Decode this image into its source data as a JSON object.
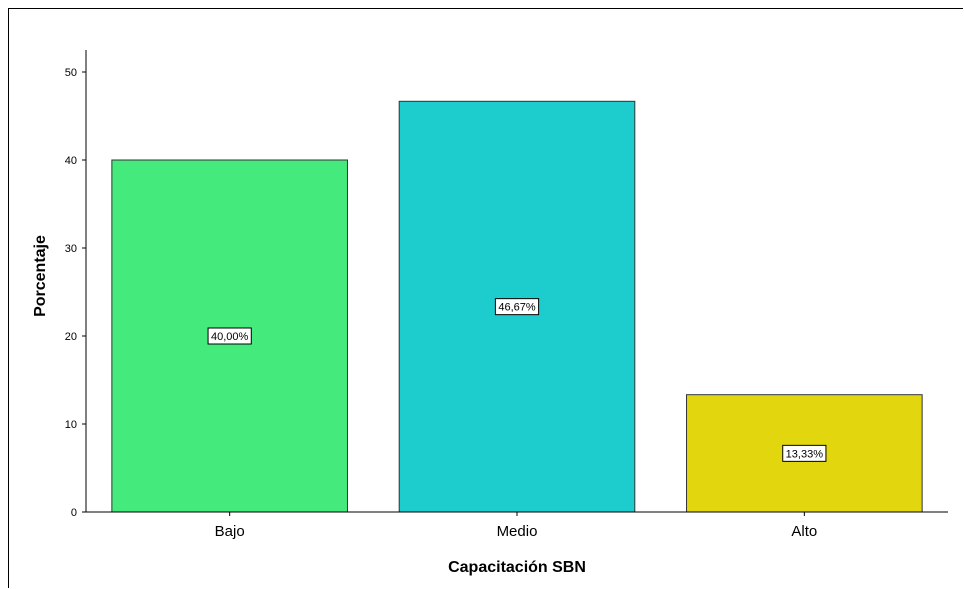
{
  "chart_data": {
    "type": "bar",
    "title": "",
    "xlabel": "Capacitación SBN",
    "ylabel": "Porcentaje",
    "categories": [
      "Bajo",
      "Medio",
      "Alto"
    ],
    "values": [
      40.0,
      46.67,
      13.33
    ],
    "data_labels": [
      "40,00%",
      "46,67%",
      "13,33%"
    ],
    "colors": [
      "#44ea7c",
      "#1dcdcd",
      "#e2d70e"
    ],
    "ylim": [
      0,
      52
    ],
    "yticks": [
      0,
      10,
      20,
      30,
      40,
      50
    ],
    "ytick_labels": [
      "0",
      "10",
      "20",
      "30",
      "40",
      "50"
    ],
    "grid": false,
    "legend": "none"
  }
}
